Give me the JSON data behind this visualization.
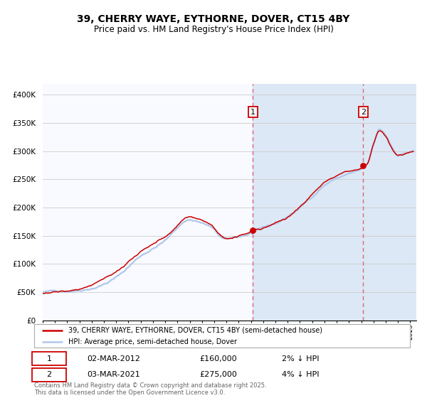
{
  "title": "39, CHERRY WAYE, EYTHORNE, DOVER, CT15 4BY",
  "subtitle": "Price paid vs. HM Land Registry's House Price Index (HPI)",
  "ylabel_ticks": [
    "£0",
    "£50K",
    "£100K",
    "£150K",
    "£200K",
    "£250K",
    "£300K",
    "£350K",
    "£400K"
  ],
  "ytick_vals": [
    0,
    50000,
    100000,
    150000,
    200000,
    250000,
    300000,
    350000,
    400000
  ],
  "ylim": [
    0,
    420000
  ],
  "sale1_price": 160000,
  "sale1_date": "02-MAR-2012",
  "sale1_year_decimal": 2012.167,
  "sale1_note": "2% ↓ HPI",
  "sale2_price": 275000,
  "sale2_date": "03-MAR-2021",
  "sale2_year_decimal": 2021.167,
  "sale2_note": "4% ↓ HPI",
  "legend_line1": "39, CHERRY WAYE, EYTHORNE, DOVER, CT15 4BY (semi-detached house)",
  "legend_line2": "HPI: Average price, semi-detached house, Dover",
  "footer": "Contains HM Land Registry data © Crown copyright and database right 2025.\nThis data is licensed under the Open Government Licence v3.0.",
  "hpi_color": "#b0c8e8",
  "price_color": "#cc0000",
  "chart_bg": "#f8faff",
  "shade_color": "#dce8f5",
  "vline_color": "#dd6677",
  "grid_color": "#cccccc",
  "waypoints_m": [
    0,
    24,
    48,
    72,
    96,
    120,
    144,
    162,
    180,
    192,
    204,
    216,
    228,
    240,
    252,
    264,
    276,
    288,
    300,
    312,
    318,
    324,
    330,
    336,
    342,
    348,
    354,
    364
  ],
  "waypoints_v": [
    50000,
    53000,
    62000,
    82000,
    120000,
    148000,
    185000,
    175000,
    148000,
    152000,
    158000,
    165000,
    172000,
    185000,
    200000,
    220000,
    242000,
    254000,
    262000,
    268000,
    276000,
    310000,
    335000,
    325000,
    305000,
    292000,
    295000,
    300000
  ],
  "noise_seed": 42,
  "noise_scale_hpi": 600,
  "noise_scale_price": 500
}
